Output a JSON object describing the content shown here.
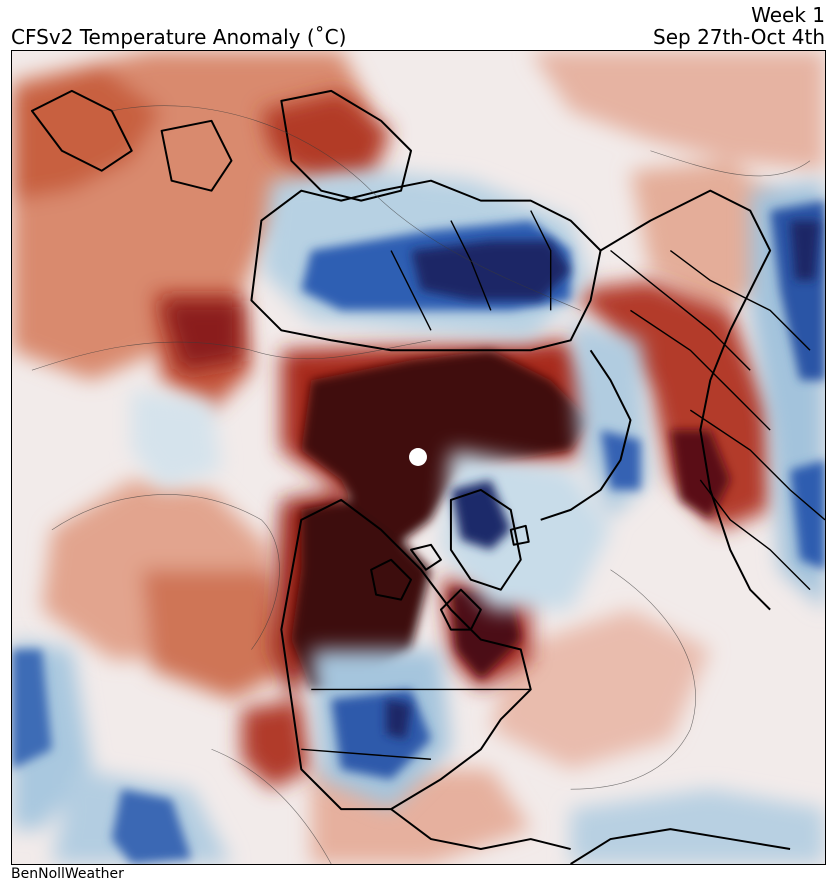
{
  "header": {
    "title": "CFSv2 Temperature Anomaly (˚C)",
    "week_label": "Week 1",
    "date_range": "Sep 27th-Oct 4th"
  },
  "map": {
    "projection": "north-polar-stereographic",
    "field": "2m temperature anomaly",
    "colors": {
      "strong_cold": "#1f2d6b",
      "cold": "#2b5cb0",
      "cool": "#9ec4de",
      "near_normal": "#f1ebea",
      "warm": "#e3a38c",
      "hot": "#b83a2a",
      "strong_hot": "#3d0b10",
      "pole_marker": "#ffffff"
    },
    "outlines": [
      "continents",
      "country-borders",
      "state-borders"
    ]
  },
  "footer": {
    "credit": "BenNollWeather"
  }
}
